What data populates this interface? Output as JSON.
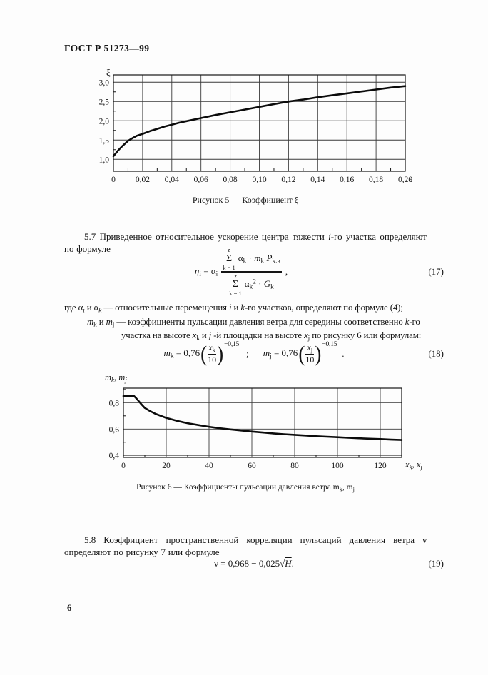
{
  "page": {
    "header": "ГОСТ Р 51273—99",
    "number": "6"
  },
  "para_5_7_tokens": [
    {
      "x": "5.7 Приведенное относительное ускорение центра тяжести "
    },
    {
      "x": "i",
      "m": "it"
    },
    {
      "x": "-го участка определяют по формуле"
    }
  ],
  "where_line1_tokens": [
    {
      "x": "где α"
    },
    {
      "x": "i",
      "m": "subit"
    },
    {
      "x": " и  α"
    },
    {
      "x": "k",
      "m": "subit"
    },
    {
      "x": " — относительные перемещения "
    },
    {
      "x": "i",
      "m": "it"
    },
    {
      "x": " и "
    },
    {
      "x": "k",
      "m": "it"
    },
    {
      "x": "-го участков, определяют по формуле (4);"
    }
  ],
  "where_line2_tokens": [
    {
      "x": "m",
      "m": "it"
    },
    {
      "x": "k",
      "m": "sub"
    },
    {
      "x": " и "
    },
    {
      "x": "m",
      "m": "it"
    },
    {
      "x": "j",
      "m": "sub"
    },
    {
      "x": " — коэффициенты пульсации давления ветра для середины соответственно "
    },
    {
      "x": "k",
      "m": "it"
    },
    {
      "x": "-го участка на высоте "
    },
    {
      "x": "x",
      "m": "it"
    },
    {
      "x": "k",
      "m": "sub"
    },
    {
      "x": " и "
    },
    {
      "x": "j",
      "m": "it"
    },
    {
      "x": " -й площадки на высоте "
    },
    {
      "x": "x",
      "m": "it"
    },
    {
      "x": "j",
      "m": "sub"
    },
    {
      "x": " по рисунку 6 или формулам:"
    }
  ],
  "para_5_8_tokens": [
    {
      "x": "5.8 Коэффициент пространственной корреляции пульсаций давления ветра ν определяют по рисунку 7 или формуле"
    }
  ],
  "formula_17": {
    "lhs_tokens": [
      {
        "x": "η",
        "m": "it"
      },
      {
        "x": "i",
        "m": "sub"
      },
      {
        "x": " = α"
      },
      {
        "x": "i",
        "m": "sub"
      }
    ],
    "sigma": "Σ",
    "sum_upper": "z",
    "sum_lower": "k = 1",
    "num_tokens": [
      {
        "x": "α"
      },
      {
        "x": "k",
        "m": "sub"
      },
      {
        "x": " · "
      },
      {
        "x": "m",
        "m": "it"
      },
      {
        "x": "k",
        "m": "sub"
      },
      {
        "x": " "
      },
      {
        "x": "P",
        "m": "it"
      },
      {
        "x": "k.в",
        "m": "sub"
      }
    ],
    "den_tokens": [
      {
        "x": "α"
      },
      {
        "x": "k",
        "m": "sub"
      },
      {
        "x": "2",
        "m": "sup"
      },
      {
        "x": " · "
      },
      {
        "x": "G",
        "m": "it"
      },
      {
        "x": "k",
        "m": "sub"
      }
    ],
    "comma": ",",
    "number": "(17)"
  },
  "formula_18": {
    "part1_tokens": [
      {
        "x": "m",
        "m": "it"
      },
      {
        "x": "k",
        "m": "sub"
      },
      {
        "x": " = 0,76 "
      }
    ],
    "frac1_num_tokens": [
      {
        "x": "x",
        "m": "it"
      },
      {
        "x": "k",
        "m": "sub"
      }
    ],
    "frac1_den": "10",
    "exp1": "−0,15",
    "sep": ";",
    "part2_tokens": [
      {
        "x": "m",
        "m": "it"
      },
      {
        "x": "j",
        "m": "sub"
      },
      {
        "x": " = 0,76 "
      }
    ],
    "frac2_num_tokens": [
      {
        "x": "x",
        "m": "it"
      },
      {
        "x": "j",
        "m": "sub"
      }
    ],
    "frac2_den": "10",
    "exp2": "−0,15",
    "lparen": "(",
    "rparen": ")",
    "end": ".",
    "number": "(18)"
  },
  "formula_19": {
    "tokens": [
      {
        "x": "ν = 0,968 − 0,025"
      },
      {
        "x": "√"
      },
      {
        "x": "H",
        "m": "ovit"
      },
      {
        "x": " ."
      }
    ],
    "number": "(19)"
  },
  "captions": {
    "fig5": "Рисунок 5 — Коэффициент ξ",
    "fig6_tokens": [
      {
        "x": "Рисунок 6 — Коэффициенты пульсации давления ветра m"
      },
      {
        "x": "k",
        "m": "sub"
      },
      {
        "x": ", m"
      },
      {
        "x": "j",
        "m": "sub"
      }
    ]
  },
  "chart1_labels": {
    "y_tokens": [
      {
        "x": "ξ"
      }
    ],
    "x_tokens": [
      {
        "x": "ε"
      }
    ]
  },
  "chart2_labels": {
    "y_tokens": [
      {
        "x": "m",
        "m": "it"
      },
      {
        "x": "k",
        "m": "subit"
      },
      {
        "x": ", "
      },
      {
        "x": "m",
        "m": "it"
      },
      {
        "x": "j",
        "m": "subit"
      }
    ],
    "x_tokens": [
      {
        "x": "x",
        "m": "it"
      },
      {
        "x": "k",
        "m": "subit"
      },
      {
        "x": ", "
      },
      {
        "x": "x",
        "m": "it"
      },
      {
        "x": "j",
        "m": "subit"
      }
    ]
  },
  "chart_data": [
    {
      "type": "line",
      "title": "Рисунок 5 — Коэффициент ξ",
      "xlabel": "ε",
      "ylabel": "ξ",
      "xlim": [
        0,
        0.2
      ],
      "ylim": [
        0.69,
        3.19
      ],
      "x_ticks": [
        0,
        0.02,
        0.04,
        0.06,
        0.08,
        0.1,
        0.12,
        0.14,
        0.16,
        0.18,
        0.2
      ],
      "x_tick_labels": [
        "0",
        "0,02",
        "0,04",
        "0,06",
        "0,08",
        "0,10",
        "0,12",
        "0,14",
        "0,16",
        "0,18",
        "0,20"
      ],
      "y_ticks": [
        1.0,
        1.5,
        2.0,
        2.5,
        3.0
      ],
      "y_tick_labels": [
        "1,0",
        "1,5",
        "2,0",
        "2,5",
        "3,0"
      ],
      "x_minor": [
        0.01,
        0.03,
        0.05,
        0.07,
        0.09,
        0.11,
        0.13,
        0.15,
        0.17,
        0.19
      ],
      "y_minor": [
        1.25,
        1.75,
        2.25,
        2.75
      ],
      "grid": true,
      "points": [
        [
          0,
          1.08
        ],
        [
          0.003,
          1.22
        ],
        [
          0.006,
          1.34
        ],
        [
          0.01,
          1.48
        ],
        [
          0.013,
          1.55
        ],
        [
          0.016,
          1.61
        ],
        [
          0.02,
          1.66
        ],
        [
          0.025,
          1.73
        ],
        [
          0.03,
          1.79
        ],
        [
          0.035,
          1.85
        ],
        [
          0.04,
          1.9
        ],
        [
          0.045,
          1.95
        ],
        [
          0.05,
          1.99
        ],
        [
          0.06,
          2.07
        ],
        [
          0.07,
          2.15
        ],
        [
          0.08,
          2.22
        ],
        [
          0.09,
          2.29
        ],
        [
          0.1,
          2.36
        ],
        [
          0.11,
          2.43
        ],
        [
          0.12,
          2.5
        ],
        [
          0.13,
          2.55
        ],
        [
          0.14,
          2.61
        ],
        [
          0.15,
          2.66
        ],
        [
          0.16,
          2.71
        ],
        [
          0.17,
          2.76
        ],
        [
          0.18,
          2.81
        ],
        [
          0.19,
          2.86
        ],
        [
          0.2,
          2.9
        ]
      ]
    },
    {
      "type": "line",
      "title": "Рисунок 6 — Коэффициенты пульсации давления ветра mk, mj",
      "xlabel": "xk, xj",
      "ylabel": "mk, mj",
      "xlim": [
        0,
        130
      ],
      "ylim": [
        0.385,
        0.91
      ],
      "x_ticks": [
        0,
        20,
        40,
        60,
        80,
        100,
        120
      ],
      "x_tick_labels": [
        "0",
        "20",
        "40",
        "60",
        "80",
        "100",
        "120"
      ],
      "y_ticks": [
        0.4,
        0.6,
        0.8
      ],
      "y_tick_labels": [
        "0,4",
        "0,6",
        "0,8"
      ],
      "x_minor": [
        10,
        30,
        50,
        70,
        90,
        110
      ],
      "y_minor": [
        0.5,
        0.7,
        0.9
      ],
      "grid": true,
      "points": [
        [
          0,
          0.85
        ],
        [
          5,
          0.85
        ],
        [
          6,
          0.833
        ],
        [
          8,
          0.795
        ],
        [
          10,
          0.76
        ],
        [
          12,
          0.74
        ],
        [
          15,
          0.715
        ],
        [
          20,
          0.685
        ],
        [
          25,
          0.662
        ],
        [
          30,
          0.644
        ],
        [
          35,
          0.63
        ],
        [
          40,
          0.617
        ],
        [
          45,
          0.606
        ],
        [
          50,
          0.597
        ],
        [
          55,
          0.589
        ],
        [
          60,
          0.581
        ],
        [
          65,
          0.574
        ],
        [
          70,
          0.567
        ],
        [
          75,
          0.561
        ],
        [
          80,
          0.556
        ],
        [
          85,
          0.551
        ],
        [
          90,
          0.546
        ],
        [
          95,
          0.542
        ],
        [
          100,
          0.538
        ],
        [
          105,
          0.534
        ],
        [
          110,
          0.53
        ],
        [
          115,
          0.527
        ],
        [
          120,
          0.524
        ],
        [
          125,
          0.52
        ],
        [
          130,
          0.517
        ]
      ]
    }
  ]
}
